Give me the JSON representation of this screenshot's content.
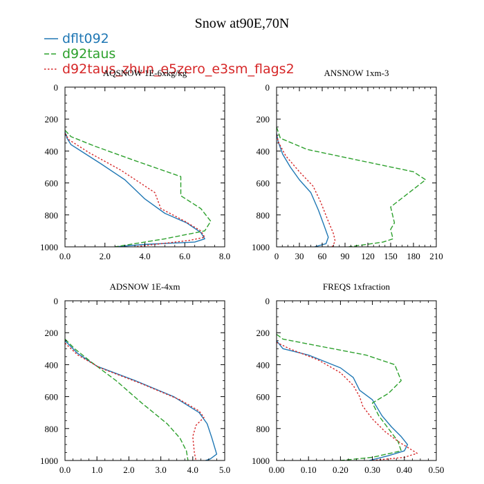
{
  "title": "Snow at90E,70N",
  "colors": {
    "dflt092": "#1f77b4",
    "d92taus": "#2ca02c",
    "d92taus_zhun_e5zero_e3sm_flags2": "#d62728"
  },
  "legend": {
    "placement": "top-left",
    "entries": [
      {
        "label": "dflt092",
        "color": "#1f77b4",
        "style": "solid"
      },
      {
        "label": "d92taus",
        "color": "#2ca02c",
        "style": "dashed"
      },
      {
        "label": "d92taus_zhun_e5zero_e3sm_flags2",
        "color": "#d62728",
        "style": "dotted"
      }
    ]
  },
  "chart_data": [
    {
      "type": "line",
      "title": "AQSNOW  1E-6xkg/kg",
      "xlim": [
        0,
        8
      ],
      "ylim": [
        1000,
        0
      ],
      "y_inverted": true,
      "xticks": [
        "0.0",
        "2.0",
        "4.0",
        "6.0",
        "8.0"
      ],
      "xtick_values": [
        0,
        2,
        4,
        6,
        8
      ],
      "yticks": [
        "0",
        "200",
        "400",
        "600",
        "800",
        "1000"
      ],
      "ytick_values": [
        0,
        200,
        400,
        600,
        800,
        1000
      ],
      "series": [
        {
          "name": "dflt092",
          "style": "solid",
          "x": [
            0,
            0.1,
            0.3,
            0.8,
            1.8,
            3.0,
            4.0,
            5.0,
            6.1,
            6.8,
            7.0,
            6.5,
            4.0,
            2.5
          ],
          "y": [
            280,
            320,
            360,
            400,
            480,
            580,
            700,
            790,
            850,
            910,
            950,
            970,
            985,
            1000
          ]
        },
        {
          "name": "d92taus",
          "style": "dashed",
          "x": [
            0,
            0.3,
            1.5,
            3.5,
            5.8,
            5.8,
            6.8,
            7.3,
            7.0,
            5.0,
            2.5
          ],
          "y": [
            270,
            310,
            370,
            460,
            560,
            680,
            760,
            840,
            900,
            950,
            1000
          ]
        },
        {
          "name": "d92taus_zhun_e5zero_e3sm_flags2",
          "style": "dotted",
          "x": [
            0,
            0.2,
            1.2,
            2.8,
            4.5,
            4.8,
            6.0,
            6.8,
            7.0,
            6.2,
            4.5,
            3.5
          ],
          "y": [
            290,
            330,
            410,
            520,
            660,
            760,
            840,
            900,
            940,
            960,
            985,
            1000
          ]
        }
      ]
    },
    {
      "type": "line",
      "title": "ANSNOW  1xm-3",
      "xlim": [
        0,
        210
      ],
      "ylim": [
        1000,
        0
      ],
      "y_inverted": true,
      "xticks": [
        "0",
        "30",
        "60",
        "90",
        "120",
        "150",
        "180",
        "210"
      ],
      "xtick_values": [
        0,
        30,
        60,
        90,
        120,
        150,
        180,
        210
      ],
      "yticks": [
        "0",
        "200",
        "400",
        "600",
        "800",
        "1000"
      ],
      "ytick_values": [
        0,
        200,
        400,
        600,
        800,
        1000
      ],
      "series": [
        {
          "name": "dflt092",
          "style": "solid",
          "x": [
            0,
            2,
            8,
            18,
            30,
            45,
            55,
            62,
            68,
            65,
            50
          ],
          "y": [
            290,
            340,
            420,
            500,
            580,
            660,
            770,
            860,
            940,
            980,
            1000
          ]
        },
        {
          "name": "d92taus",
          "style": "dashed",
          "x": [
            0,
            5,
            40,
            110,
            180,
            196,
            150,
            155,
            150,
            153,
            140,
            95
          ],
          "y": [
            250,
            320,
            390,
            460,
            530,
            580,
            750,
            850,
            890,
            950,
            970,
            1000
          ]
        },
        {
          "name": "d92taus_zhun_e5zero_e3sm_flags2",
          "style": "dotted",
          "x": [
            0,
            3,
            12,
            30,
            48,
            58,
            68,
            75,
            77,
            73
          ],
          "y": [
            300,
            350,
            430,
            530,
            620,
            720,
            840,
            920,
            965,
            1000
          ]
        }
      ]
    },
    {
      "type": "line",
      "title": "ADSNOW  1E-4xm",
      "xlim": [
        0,
        5
      ],
      "ylim": [
        1000,
        0
      ],
      "y_inverted": true,
      "xticks": [
        "0.0",
        "1.0",
        "2.0",
        "3.0",
        "4.0",
        "5.0"
      ],
      "xtick_values": [
        0,
        1,
        2,
        3,
        4,
        5
      ],
      "yticks": [
        "0",
        "200",
        "400",
        "600",
        "800",
        "1000"
      ],
      "ytick_values": [
        0,
        200,
        400,
        600,
        800,
        1000
      ],
      "series": [
        {
          "name": "dflt092",
          "style": "solid",
          "x": [
            0,
            0.4,
            1.0,
            2.2,
            3.4,
            4.2,
            4.45,
            4.6,
            4.75,
            4.55,
            4.4
          ],
          "y": [
            250,
            330,
            410,
            500,
            600,
            700,
            770,
            860,
            960,
            990,
            1000
          ]
        },
        {
          "name": "d92taus",
          "style": "dashed",
          "x": [
            0,
            0.3,
            0.8,
            1.6,
            2.4,
            3.2,
            3.6,
            3.8,
            3.85
          ],
          "y": [
            240,
            300,
            380,
            500,
            640,
            770,
            860,
            940,
            1000
          ]
        },
        {
          "name": "d92taus_zhun_e5zero_e3sm_flags2",
          "style": "dotted",
          "x": [
            0,
            0.4,
            1.1,
            2.4,
            3.6,
            4.2,
            4.35,
            4.1,
            4.0,
            4.05,
            4.1
          ],
          "y": [
            265,
            340,
            420,
            520,
            620,
            690,
            730,
            780,
            850,
            950,
            1000
          ]
        }
      ]
    },
    {
      "type": "line",
      "title": "FREQS  1xfraction",
      "xlim": [
        0,
        0.5
      ],
      "ylim": [
        1000,
        0
      ],
      "y_inverted": true,
      "xticks": [
        "0.00",
        "0.10",
        "0.20",
        "0.30",
        "0.40",
        "0.50"
      ],
      "xtick_values": [
        0,
        0.1,
        0.2,
        0.3,
        0.4,
        0.5
      ],
      "yticks": [
        "0",
        "200",
        "400",
        "600",
        "800",
        "1000"
      ],
      "ytick_values": [
        0,
        200,
        400,
        600,
        800,
        1000
      ],
      "series": [
        {
          "name": "dflt092",
          "style": "solid",
          "x": [
            0,
            0.02,
            0.1,
            0.2,
            0.24,
            0.26,
            0.3,
            0.33,
            0.36,
            0.39,
            0.41,
            0.4,
            0.35,
            0.29
          ],
          "y": [
            250,
            300,
            340,
            420,
            480,
            560,
            620,
            720,
            790,
            850,
            900,
            940,
            970,
            1000
          ]
        },
        {
          "name": "d92taus",
          "style": "dashed",
          "x": [
            0,
            0.02,
            0.15,
            0.28,
            0.37,
            0.39,
            0.35,
            0.3,
            0.32,
            0.35,
            0.38,
            0.39,
            0.3,
            0.2
          ],
          "y": [
            210,
            240,
            290,
            340,
            400,
            500,
            580,
            640,
            720,
            800,
            880,
            940,
            980,
            1000
          ]
        },
        {
          "name": "d92taus_zhun_e5zero_e3sm_flags2",
          "style": "dotted",
          "x": [
            0,
            0.04,
            0.13,
            0.2,
            0.24,
            0.26,
            0.27,
            0.3,
            0.34,
            0.38,
            0.42,
            0.44,
            0.4,
            0.3
          ],
          "y": [
            260,
            300,
            370,
            450,
            530,
            600,
            660,
            740,
            820,
            880,
            930,
            955,
            980,
            1000
          ]
        }
      ]
    }
  ]
}
